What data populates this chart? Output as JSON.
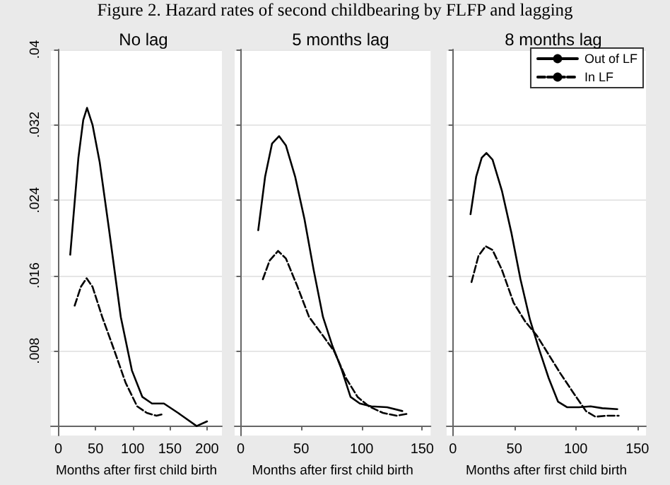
{
  "chart_data": [
    {
      "type": "line",
      "title": "No lag",
      "xlabel": "Months after first child birth",
      "annotations": [
        "Figure 2. Hazard rates of second childbearing by FLFP and lagging"
      ],
      "xlim": [
        -10,
        220
      ],
      "xticks": [
        0,
        50,
        100,
        150,
        200
      ],
      "ylim": [
        -0.001,
        0.04
      ],
      "yticks": [
        {
          "value": 0.008,
          "label": ".008"
        },
        {
          "value": 0.016,
          "label": ".016"
        },
        {
          "value": 0.024,
          "label": ".024"
        },
        {
          "value": 0.032,
          "label": ".032"
        },
        {
          "value": 0.04,
          "label": ".04"
        }
      ],
      "grid": "y",
      "marker": "none",
      "series": [
        {
          "color": "#000000",
          "line_style": "solid",
          "x": [
            16,
            27,
            33.5,
            38.6,
            46,
            55.7,
            68,
            84,
            99,
            113,
            126,
            142,
            161,
            186,
            200
          ],
          "values": [
            0.0182,
            0.0285,
            0.0325,
            0.0338,
            0.032,
            0.028,
            0.021,
            0.0116,
            0.0059,
            0.0031,
            0.0024,
            0.0024,
            0.0014,
            0.0,
            0.0005
          ]
        },
        {
          "color": "#000000",
          "line_style": "dashed",
          "x": [
            22,
            30.4,
            38,
            46,
            59,
            75,
            90.5,
            106,
            119,
            132,
            142
          ],
          "values": [
            0.0128,
            0.0148,
            0.0157,
            0.0148,
            0.0116,
            0.0081,
            0.0046,
            0.0021,
            0.0014,
            0.0011,
            0.0013
          ]
        }
      ]
    },
    {
      "type": "line",
      "title": "5 months lag",
      "xlabel": "Months after first child birth",
      "xlim": [
        -5,
        157
      ],
      "xticks": [
        0,
        50,
        100,
        150
      ],
      "ylim": [
        -0.001,
        0.04
      ],
      "yticks": [
        0.008,
        0.016,
        0.024,
        0.032,
        0.04
      ],
      "tick_labels": "x",
      "grid": "y",
      "marker": "none",
      "series": [
        {
          "color": "#000000",
          "line_style": "solid",
          "x": [
            14.5,
            20.2,
            25.9,
            31.7,
            37.4,
            45,
            52.7,
            60.3,
            68,
            75.6,
            83.2,
            90.8,
            98.5,
            108,
            121,
            133.6
          ],
          "values": [
            0.0208,
            0.0265,
            0.03,
            0.0308,
            0.0298,
            0.0265,
            0.022,
            0.0166,
            0.0116,
            0.0086,
            0.0061,
            0.0031,
            0.0024,
            0.0021,
            0.002,
            0.0016
          ]
        },
        {
          "color": "#000000",
          "line_style": "dashed",
          "x": [
            18.3,
            24,
            30.9,
            37.4,
            47,
            56.5,
            68,
            77.5,
            87,
            96.6,
            106,
            117.6,
            129,
            137.4
          ],
          "values": [
            0.0156,
            0.0176,
            0.0186,
            0.0178,
            0.0148,
            0.0116,
            0.0096,
            0.0079,
            0.0051,
            0.0031,
            0.0021,
            0.0014,
            0.0011,
            0.0013
          ]
        }
      ]
    },
    {
      "type": "line",
      "title": "8 months lag",
      "xlabel": "Months after first child birth",
      "xlim": [
        -5,
        157
      ],
      "xticks": [
        0,
        50,
        100,
        150
      ],
      "ylim": [
        -0.001,
        0.04
      ],
      "yticks": [
        0.008,
        0.016,
        0.024,
        0.032,
        0.04
      ],
      "tick_labels": "x",
      "grid": "y",
      "marker": "none",
      "legend": "top right",
      "series": [
        {
          "name": "Out of LF",
          "color": "#000000",
          "line_style": "solid",
          "x": [
            14.4,
            19,
            23.5,
            27.3,
            32.3,
            39.9,
            47.5,
            55,
            62.7,
            70.3,
            77.9,
            85.5,
            93,
            102.5,
            112,
            121.5,
            133.7
          ],
          "values": [
            0.0225,
            0.0265,
            0.0285,
            0.029,
            0.0283,
            0.025,
            0.0206,
            0.0156,
            0.0113,
            0.0081,
            0.0051,
            0.0026,
            0.002,
            0.002,
            0.0021,
            0.0019,
            0.0018
          ]
        },
        {
          "name": "In LF",
          "color": "#000000",
          "line_style": "dashed",
          "x": [
            15.2,
            20.9,
            26.6,
            32.3,
            39.9,
            49.4,
            58.9,
            68.4,
            77.9,
            87.4,
            98.7,
            108.2,
            115.8,
            125.3,
            134.8
          ],
          "values": [
            0.0153,
            0.0181,
            0.0191,
            0.0187,
            0.0166,
            0.0131,
            0.0111,
            0.0096,
            0.0076,
            0.0056,
            0.0034,
            0.0016,
            0.001,
            0.0011,
            0.0011
          ]
        }
      ]
    }
  ]
}
